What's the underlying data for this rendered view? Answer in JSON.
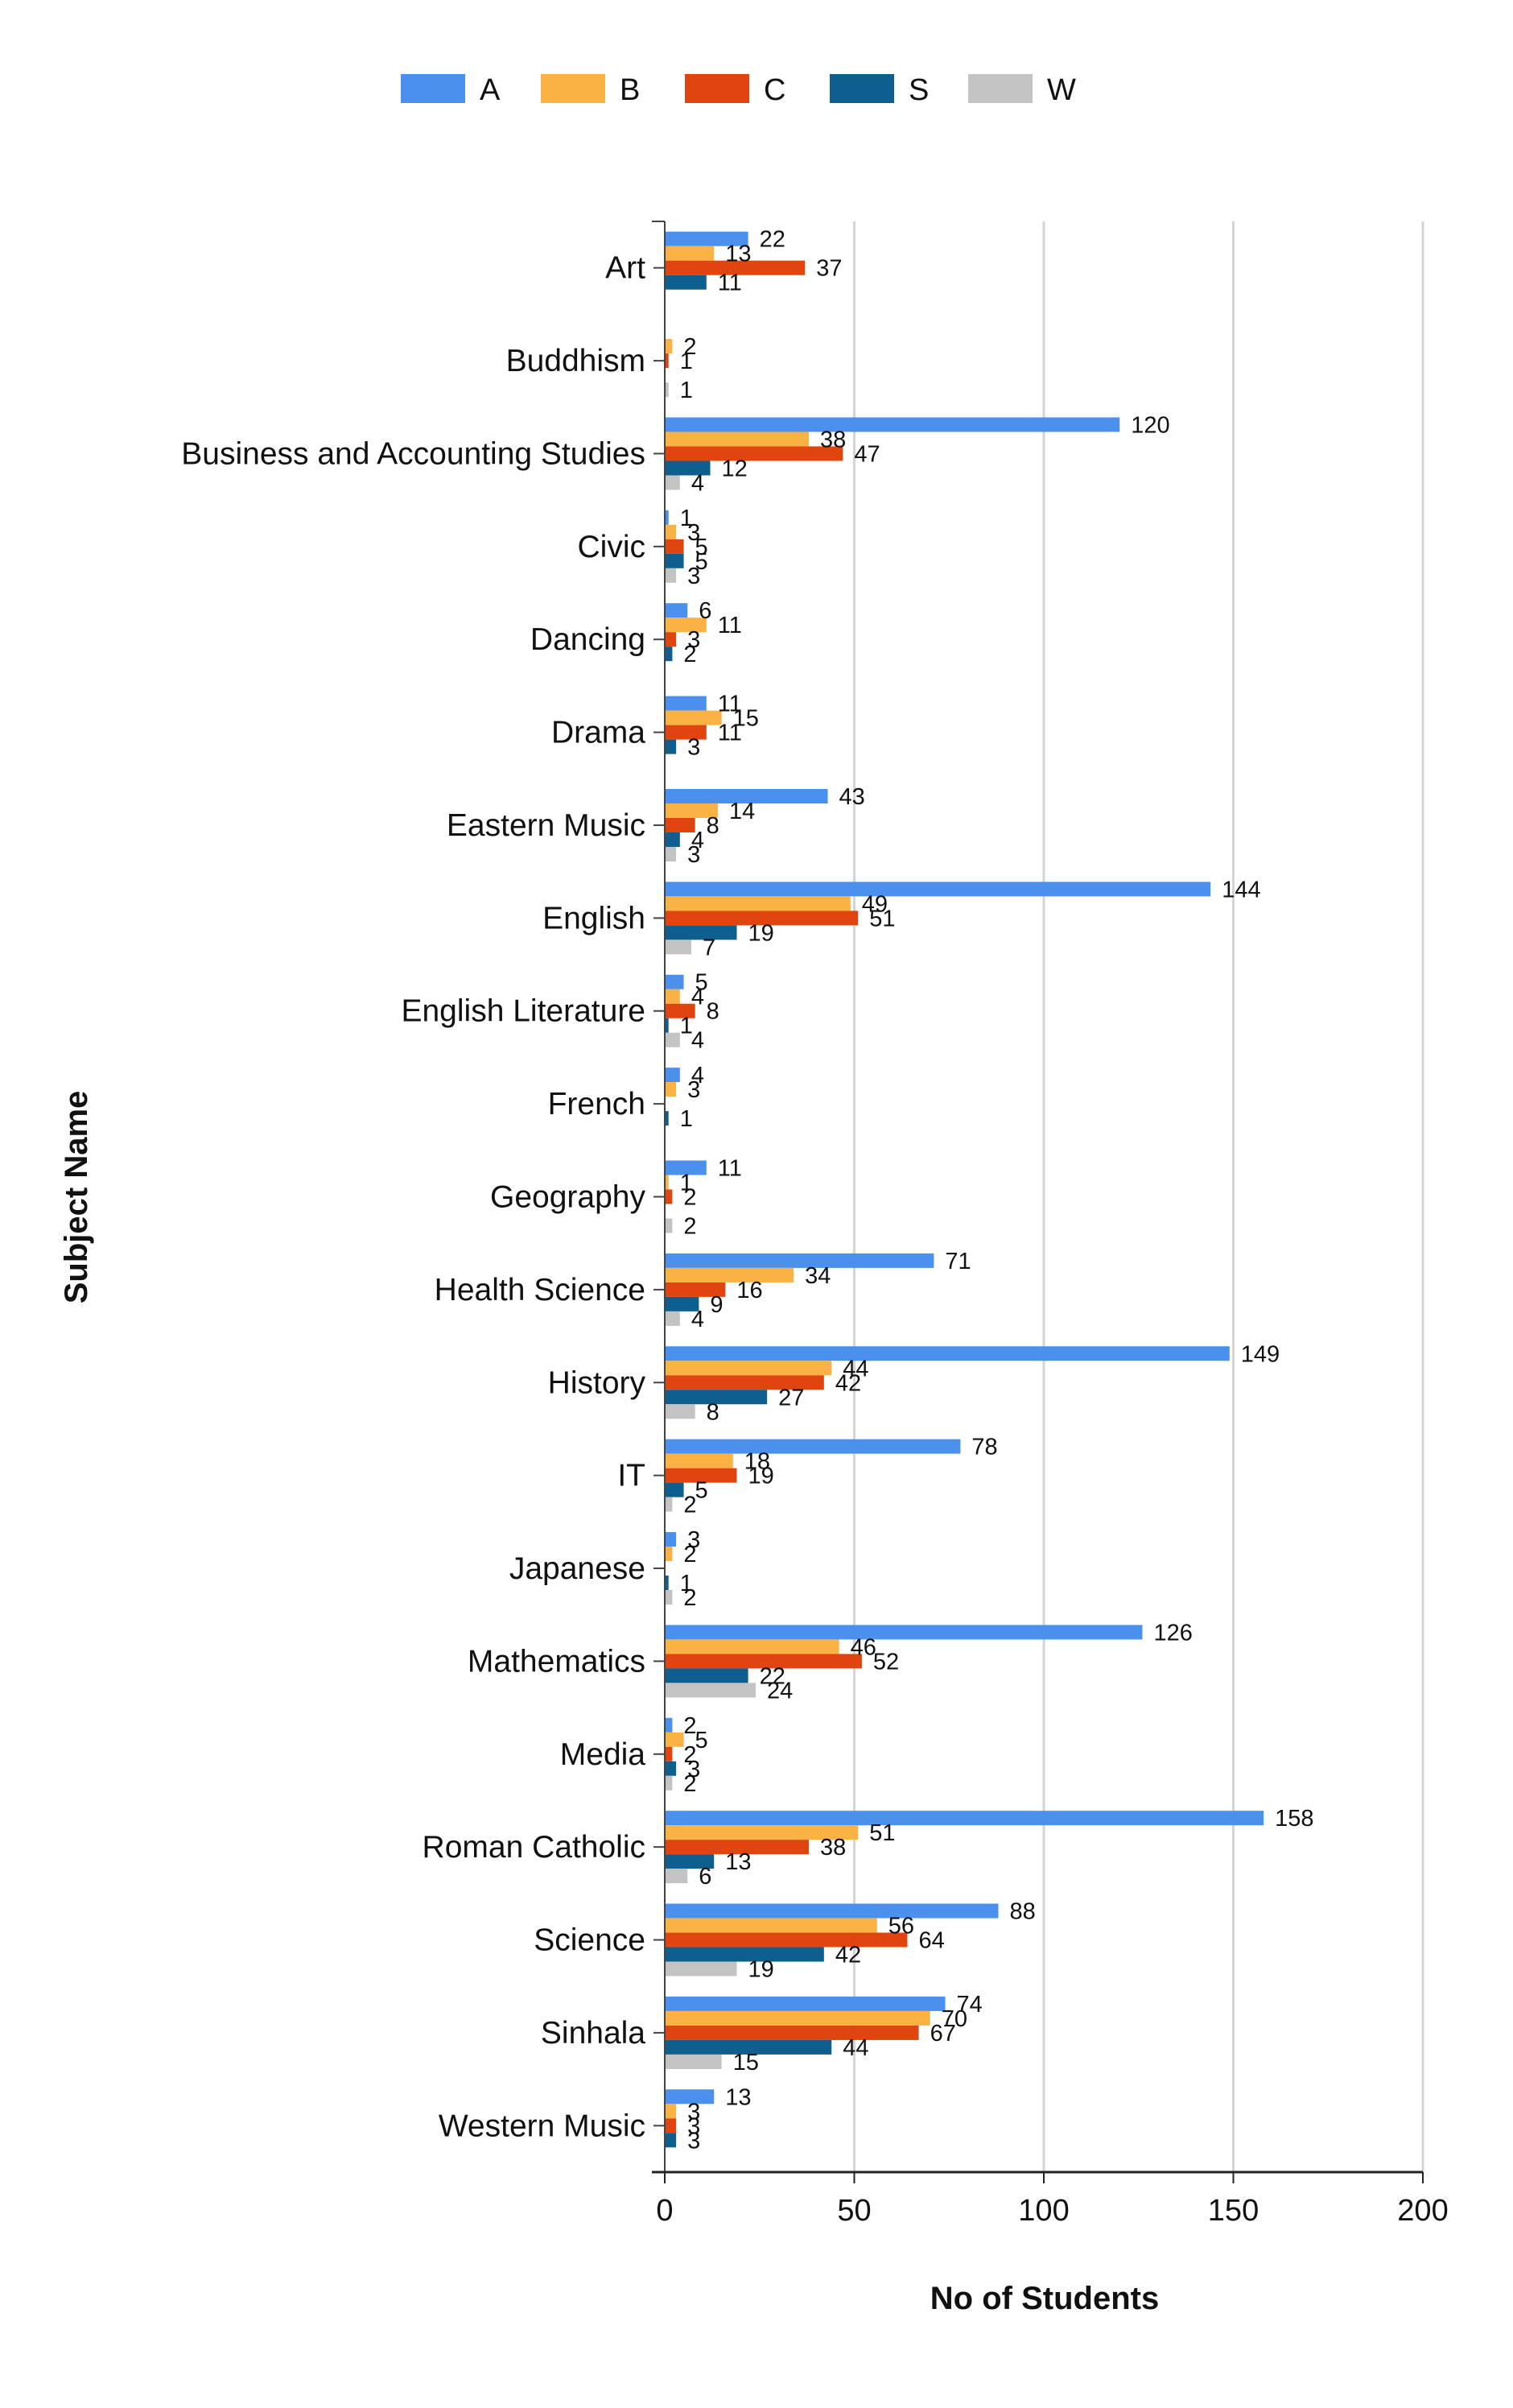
{
  "chart_data": {
    "type": "bar",
    "orientation": "horizontal",
    "xlabel": "No of Students",
    "ylabel": "Subject Name",
    "xlim": [
      0,
      200
    ],
    "xticks": [
      0,
      50,
      100,
      150,
      200
    ],
    "grid": "vertical",
    "legend_position": "top",
    "categories": [
      "Art",
      "Buddhism",
      "Business and Accounting Studies",
      "Civic",
      "Dancing",
      "Drama",
      "Eastern Music",
      "English",
      "English Literature",
      "French",
      "Geography",
      "Health Science",
      "History",
      "IT",
      "Japanese",
      "Mathematics",
      "Media",
      "Roman Catholic",
      "Science",
      "Sinhala",
      "Western Music"
    ],
    "series": [
      {
        "name": "A",
        "color": "#4a90ec",
        "values": [
          22,
          null,
          120,
          1,
          6,
          11,
          43,
          144,
          5,
          4,
          11,
          71,
          149,
          78,
          3,
          126,
          2,
          158,
          88,
          74,
          13
        ]
      },
      {
        "name": "B",
        "color": "#fbb245",
        "values": [
          13,
          2,
          38,
          3,
          11,
          15,
          14,
          49,
          4,
          3,
          1,
          34,
          44,
          18,
          2,
          46,
          5,
          51,
          56,
          70,
          3
        ]
      },
      {
        "name": "C",
        "color": "#e0450f",
        "values": [
          37,
          1,
          47,
          5,
          3,
          11,
          8,
          51,
          8,
          null,
          2,
          16,
          42,
          19,
          null,
          52,
          2,
          38,
          64,
          67,
          3
        ]
      },
      {
        "name": "S",
        "color": "#0e5f8e",
        "values": [
          11,
          null,
          12,
          5,
          2,
          3,
          4,
          19,
          1,
          1,
          null,
          9,
          27,
          5,
          1,
          22,
          3,
          13,
          42,
          44,
          3
        ]
      },
      {
        "name": "W",
        "color": "#c3c3c3",
        "values": [
          null,
          1,
          4,
          3,
          null,
          null,
          3,
          7,
          4,
          null,
          2,
          4,
          8,
          2,
          2,
          24,
          2,
          6,
          19,
          15,
          null
        ]
      }
    ]
  }
}
